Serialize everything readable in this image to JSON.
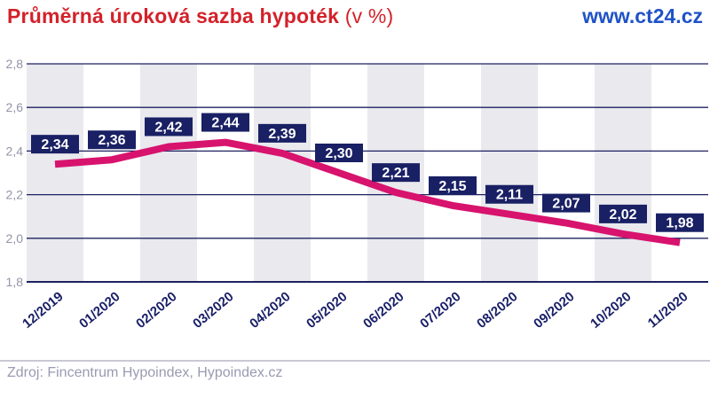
{
  "header": {
    "title_bold": "Průměrná úroková sazba hypoték",
    "title_suffix": " (v %)",
    "site": "www.ct24.cz"
  },
  "footer": {
    "source": "Zdroj: Fincentrum Hypoindex, Hypoindex.cz"
  },
  "colors": {
    "title_red": "#d3222a",
    "site_blue": "#1e52c7",
    "label_box_navy": "#192064",
    "grid_navy": "#1e2260",
    "line_pink": "#d7136e",
    "stripe_gray": "#e9e9ee",
    "y_tick_gray": "#9393a8",
    "x_tick_navy": "#1a2068",
    "value_text_white": "#ffffff",
    "source_gray": "#9a9ab2",
    "separator_gray": "#c9c9d4"
  },
  "chart_data": {
    "type": "line",
    "title": "Průměrná úroková sazba hypoték (v %)",
    "xlabel": "",
    "ylabel": "",
    "categories": [
      "12/2019",
      "01/2020",
      "02/2020",
      "03/2020",
      "04/2020",
      "05/2020",
      "06/2020",
      "07/2020",
      "08/2020",
      "09/2020",
      "10/2020",
      "11/2020"
    ],
    "values": [
      2.34,
      2.36,
      2.42,
      2.44,
      2.39,
      2.3,
      2.21,
      2.15,
      2.11,
      2.07,
      2.02,
      1.98
    ],
    "value_labels": [
      "2,34",
      "2,36",
      "2,42",
      "2,44",
      "2,39",
      "2,30",
      "2,21",
      "2,15",
      "2,11",
      "2,07",
      "2,02",
      "1,98"
    ],
    "ylim": [
      1.8,
      2.8
    ],
    "yticks": [
      1.8,
      2.0,
      2.2,
      2.4,
      2.6,
      2.8
    ],
    "ytick_labels": [
      "1,8",
      "2,0",
      "2,2",
      "2,4",
      "2,6",
      "2,8"
    ],
    "grid": true,
    "legend": false,
    "background": "alternating vertical gray/white column stripes, one per month",
    "data_labels": "each point labeled in a navy box above the line"
  }
}
